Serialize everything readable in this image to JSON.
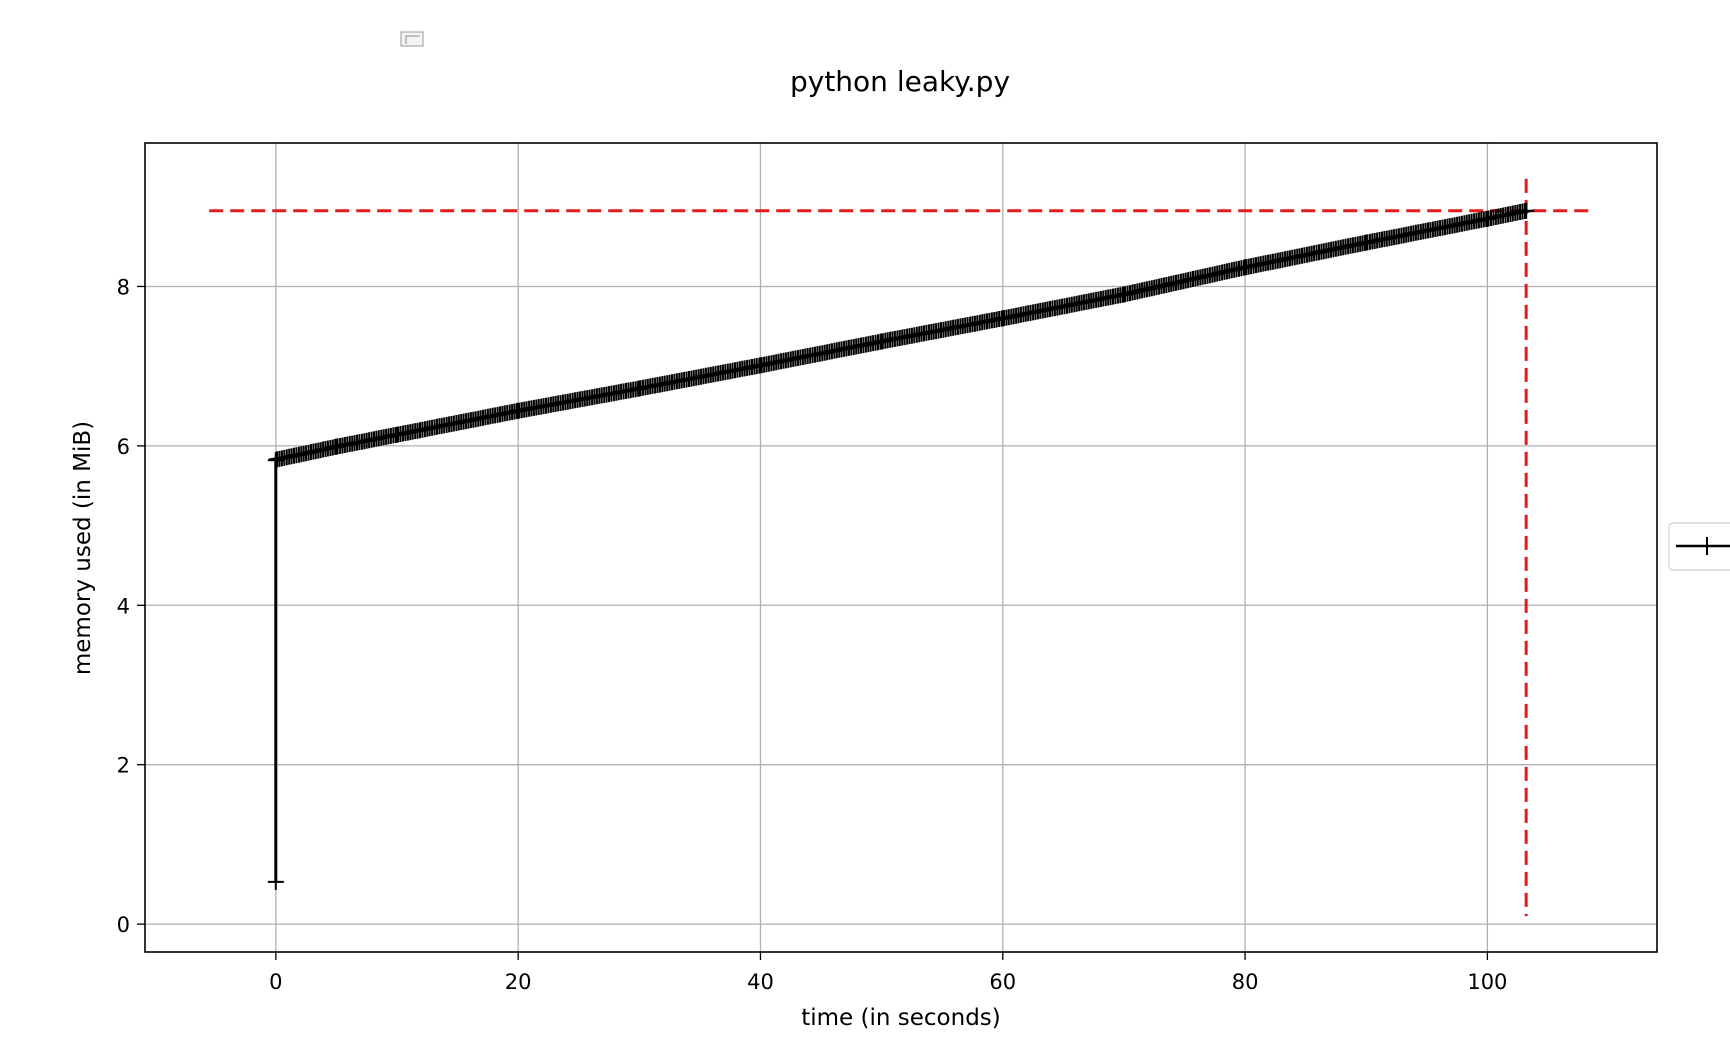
{
  "chart_data": {
    "type": "line",
    "title": "python leaky.py",
    "xlabel": "time (in seconds)",
    "ylabel": "memory used (in MiB)",
    "xlim": [
      -10.8,
      114
    ],
    "ylim": [
      -0.35,
      9.8
    ],
    "xticks": [
      "0",
      "20",
      "40",
      "60",
      "80",
      "100"
    ],
    "xtick_values": [
      0,
      20,
      40,
      60,
      80,
      100
    ],
    "yticks": [
      "0",
      "2",
      "4",
      "6",
      "8"
    ],
    "ytick_values": [
      0,
      2,
      4,
      6,
      8
    ],
    "grid": true,
    "legend_placement": "right (partially cut off)",
    "series": [
      {
        "color": "#000000",
        "marker": "plus",
        "x": [
          0.0,
          0.0,
          0.1,
          5,
          10,
          20,
          30,
          40,
          50,
          60,
          70,
          80,
          90,
          100,
          103.2
        ],
        "y": [
          0.53,
          5.82,
          5.83,
          5.99,
          6.14,
          6.44,
          6.72,
          7.01,
          7.31,
          7.6,
          7.9,
          8.24,
          8.55,
          8.85,
          8.95
        ]
      }
    ],
    "max_memory_line": {
      "color": "#e41a1c",
      "style": "dashed",
      "y": 8.95,
      "x_range": [
        -5.5,
        108.5
      ]
    },
    "max_time_line": {
      "color": "#e41a1c",
      "style": "dashed",
      "x": 103.2,
      "y_range": [
        0.1,
        9.35
      ]
    }
  }
}
